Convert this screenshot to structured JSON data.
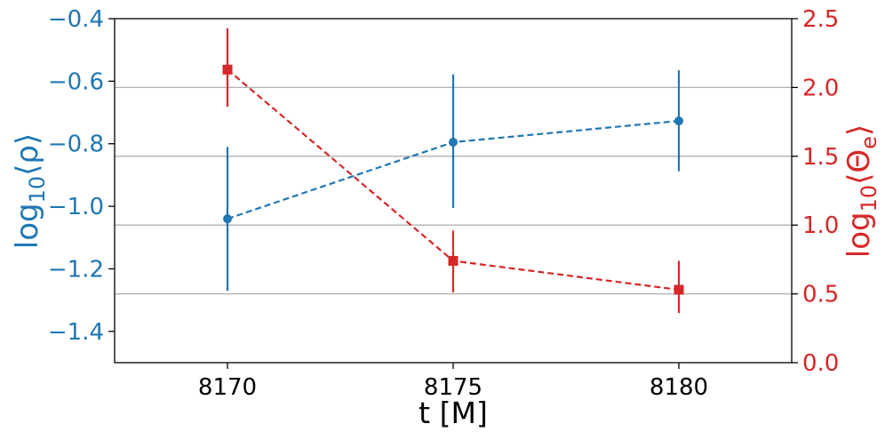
{
  "chart_data": {
    "type": "line",
    "title": "",
    "xlabel": "t [M]",
    "ylabel_left": {
      "prefix": "log",
      "subscript": "10",
      "body": "⟨ρ⟩"
    },
    "ylabel_right": {
      "prefix": "log",
      "subscript": "10",
      "body": "⟨Θ",
      "body_sub": "e",
      "body_end": "⟩"
    },
    "x": [
      8170,
      8175,
      8180
    ],
    "xlim": [
      8167.5,
      8182.5
    ],
    "xticks": [
      "8170",
      "8175",
      "8180"
    ],
    "ylim_left": [
      -1.5,
      -0.4
    ],
    "yticks_left": [
      "−0.4",
      "−0.6",
      "−0.8",
      "−1.0",
      "−1.2",
      "−1.4"
    ],
    "ylim_right": [
      0.0,
      2.5
    ],
    "yticks_right": [
      "0.0",
      "0.5",
      "1.0",
      "1.5",
      "2.0",
      "2.5"
    ],
    "grid": "horizontal gridlines at right-axis ticks",
    "series": [
      {
        "axis": "left",
        "color": "#1f77b4",
        "marker": "circle",
        "linestyle": "dashed",
        "values": [
          -1.04,
          -0.795,
          -0.727
        ],
        "err_low": [
          -1.27,
          -1.005,
          -0.888
        ],
        "err_high": [
          -0.81,
          -0.578,
          -0.565
        ]
      },
      {
        "axis": "right",
        "color": "#d62728",
        "marker": "square",
        "linestyle": "dashed",
        "values": [
          2.13,
          0.74,
          0.53
        ],
        "err_low": [
          1.86,
          0.51,
          0.36
        ],
        "err_high": [
          2.43,
          0.96,
          0.74
        ]
      }
    ]
  }
}
